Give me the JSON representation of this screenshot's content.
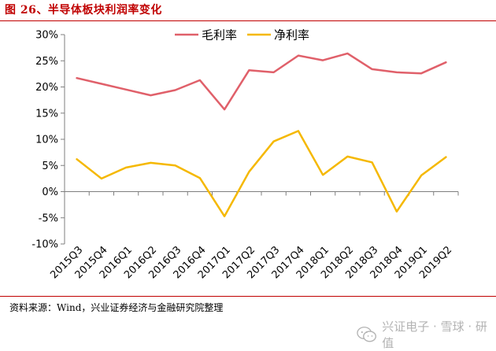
{
  "figure": {
    "title": "图 26、半导体板块利润率变化",
    "source": "资料来源：Wind，兴业证券经济与金融研究院整理",
    "watermark": "兴证电子 · 雪球 · 研值"
  },
  "chart_data": {
    "type": "line",
    "title": "",
    "xlabel": "",
    "ylabel": "",
    "categories": [
      "2015Q3",
      "2015Q4",
      "2016Q1",
      "2016Q2",
      "2016Q3",
      "2016Q4",
      "2017Q1",
      "2017Q2",
      "2017Q3",
      "2017Q4",
      "2018Q1",
      "2018Q2",
      "2018Q3",
      "2018Q4",
      "2019Q1",
      "2019Q2"
    ],
    "ylim": [
      -10,
      30
    ],
    "yticks": [
      -10,
      -5,
      0,
      5,
      10,
      15,
      20,
      25,
      30
    ],
    "ytick_suffix": "%",
    "grid": false,
    "legend_position": "top-center",
    "series": [
      {
        "name": "毛利率",
        "color": "#e0606a",
        "values": [
          21.7,
          20.6,
          19.5,
          18.4,
          19.4,
          21.3,
          15.7,
          23.2,
          22.8,
          26.0,
          25.1,
          26.4,
          23.4,
          22.8,
          22.6,
          24.7
        ]
      },
      {
        "name": "净利率",
        "color": "#f5b800",
        "values": [
          6.2,
          2.5,
          4.6,
          5.5,
          5.0,
          2.6,
          -4.7,
          3.8,
          9.6,
          11.6,
          3.2,
          6.7,
          5.6,
          -3.8,
          3.1,
          6.6
        ]
      }
    ]
  }
}
